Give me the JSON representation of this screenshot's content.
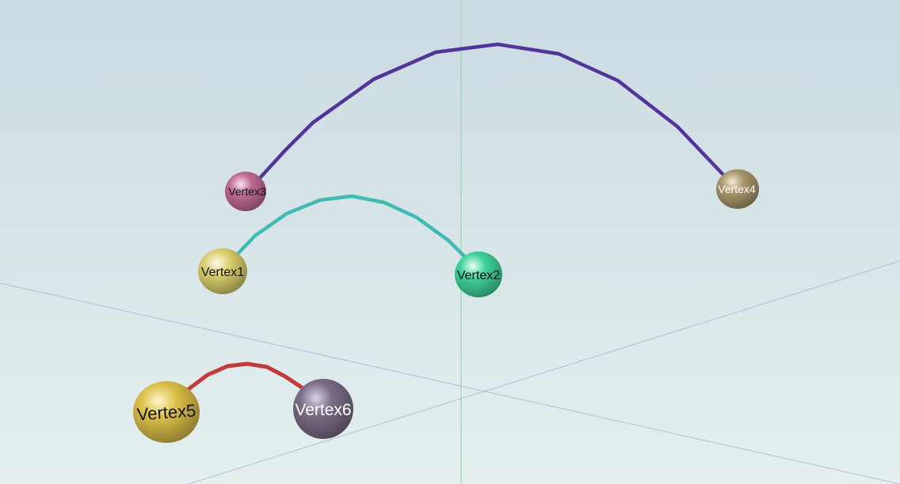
{
  "colors": {
    "background_top": "#cbdbe2",
    "background_bottom": "#e4efee",
    "axis_green": "#9fd3b2",
    "axis_blue": "#b2bdd8",
    "edge_purple": "#52349b",
    "edge_teal": "#40bbb4",
    "edge_red": "#c23a3a"
  },
  "vertices": [
    {
      "id": "vertex1",
      "label": "Vertex1",
      "color": "#d9cf6b",
      "text_color": "#111111"
    },
    {
      "id": "vertex2",
      "label": "Vertex2",
      "color": "#3fd39b",
      "text_color": "#111111"
    },
    {
      "id": "vertex3",
      "label": "Vertex3",
      "color": "#c06a93",
      "text_color": "#111111"
    },
    {
      "id": "vertex4",
      "label": "Vertex4",
      "color": "#a9976e",
      "text_color": "#ffffff"
    },
    {
      "id": "vertex5",
      "label": "Vertex5",
      "color": "#dcc049",
      "text_color": "#111111"
    },
    {
      "id": "vertex6",
      "label": "Vertex6",
      "color": "#7a6d86",
      "text_color": "#ffffff"
    }
  ],
  "edges": [
    {
      "id": "edge-vertex3-vertex4",
      "from": "Vertex3",
      "to": "Vertex4",
      "color": "#52349b"
    },
    {
      "id": "edge-vertex1-vertex2",
      "from": "Vertex1",
      "to": "Vertex2",
      "color": "#40bbb4"
    },
    {
      "id": "edge-vertex5-vertex6",
      "from": "Vertex5",
      "to": "Vertex6",
      "color": "#c23a3a"
    }
  ]
}
